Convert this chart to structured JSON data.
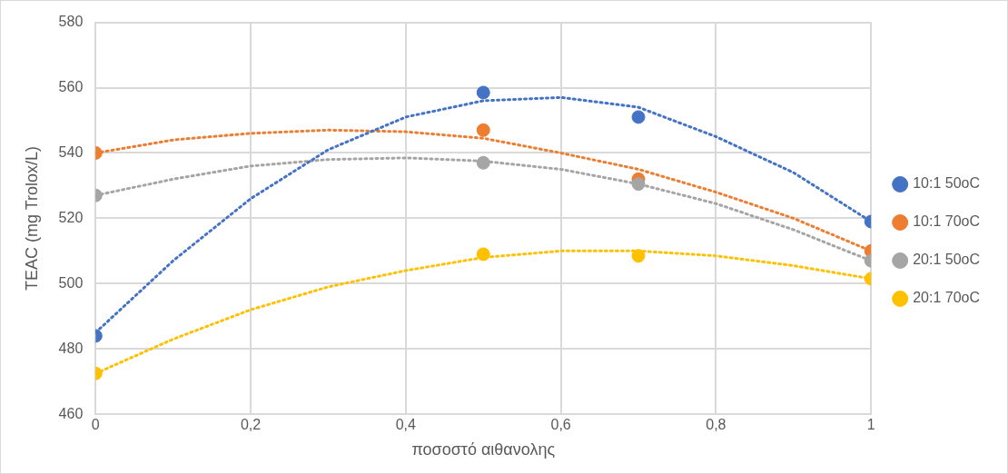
{
  "chart_data": {
    "type": "scatter",
    "xlabel": "ποσοστό αιθανολης",
    "ylabel": "TEAC (mg Trolox/L)",
    "xlim": [
      0,
      1
    ],
    "xticks": [
      {
        "value": 0,
        "label": "0"
      },
      {
        "value": 0.2,
        "label": "0,2"
      },
      {
        "value": 0.4,
        "label": "0,4"
      },
      {
        "value": 0.6,
        "label": "0,6"
      },
      {
        "value": 0.8,
        "label": "0,8"
      },
      {
        "value": 1,
        "label": "1"
      }
    ],
    "ylim": [
      460,
      580
    ],
    "yticks": [
      460,
      480,
      500,
      520,
      540,
      560,
      580
    ],
    "grid": true,
    "legend": "right",
    "marker": "circle",
    "x": [
      0,
      0.5,
      0.7,
      1
    ],
    "series": [
      {
        "name": "10:1 50oC",
        "color": "#4472c4",
        "values": [
          484,
          558.5,
          551,
          519
        ]
      },
      {
        "name": "10:1 70oC",
        "color": "#ed7d31",
        "values": [
          540,
          547,
          532,
          510
        ]
      },
      {
        "name": "20:1 50oC",
        "color": "#a5a5a5",
        "values": [
          527,
          537,
          530.5,
          507
        ]
      },
      {
        "name": "20:1 70oC",
        "color": "#ffc000",
        "values": [
          472.5,
          509,
          508.5,
          501.5
        ]
      },
      {
        "type": "line",
        "color": "#4472c4",
        "marker": "none",
        "line_style": "dotted",
        "x": [
          0,
          0.1,
          0.2,
          0.3,
          0.4,
          0.5,
          0.6,
          0.7,
          0.8,
          0.9,
          1
        ],
        "values": [
          485,
          507,
          526,
          541,
          551,
          556,
          557,
          554,
          545,
          534,
          519
        ]
      },
      {
        "type": "line",
        "color": "#ed7d31",
        "marker": "none",
        "line_style": "dotted",
        "x": [
          0,
          0.1,
          0.2,
          0.3,
          0.4,
          0.5,
          0.6,
          0.7,
          0.8,
          0.9,
          1
        ],
        "values": [
          540,
          544,
          546,
          547,
          546.5,
          544.5,
          540,
          535,
          528,
          520,
          510
        ]
      },
      {
        "type": "line",
        "color": "#a5a5a5",
        "marker": "none",
        "line_style": "dotted",
        "x": [
          0,
          0.1,
          0.2,
          0.3,
          0.4,
          0.5,
          0.6,
          0.7,
          0.8,
          0.9,
          1
        ],
        "values": [
          527,
          532,
          536,
          538,
          538.5,
          537.5,
          535,
          530.5,
          524.5,
          516.5,
          507
        ]
      },
      {
        "type": "line",
        "color": "#ffc000",
        "marker": "none",
        "line_style": "dotted",
        "x": [
          0,
          0.1,
          0.2,
          0.3,
          0.4,
          0.5,
          0.6,
          0.7,
          0.8,
          0.9,
          1
        ],
        "values": [
          472.5,
          483,
          492,
          499,
          504,
          508,
          510,
          510,
          508.5,
          505.5,
          501.5
        ]
      }
    ]
  }
}
